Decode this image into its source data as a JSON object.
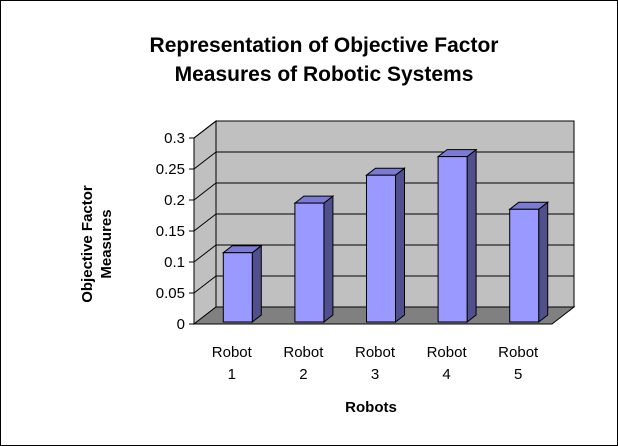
{
  "chart_data": {
    "type": "bar",
    "title_lines": [
      "Representation of Objective Factor",
      "Measures of Robotic Systems"
    ],
    "xlabel": "Robots",
    "ylabel_lines": [
      "Objective Factor",
      "Measures"
    ],
    "categories": [
      [
        "Robot",
        "1"
      ],
      [
        "Robot",
        "2"
      ],
      [
        "Robot",
        "3"
      ],
      [
        "Robot",
        "4"
      ],
      [
        "Robot",
        "5"
      ]
    ],
    "values": [
      0.115,
      0.195,
      0.24,
      0.27,
      0.185
    ],
    "ylim": [
      0,
      0.3
    ],
    "yticks": [
      "0",
      "0.05",
      "0.1",
      "0.15",
      "0.2",
      "0.25",
      "0.3"
    ],
    "grid": true,
    "legend": false,
    "three_d": true,
    "colors": {
      "bar_front": "#9999ff",
      "bar_top": "#7b7bd6",
      "bar_side": "#50508c",
      "wall": "#c0c0c0",
      "floor": "#808080",
      "gridline": "#000000"
    }
  }
}
